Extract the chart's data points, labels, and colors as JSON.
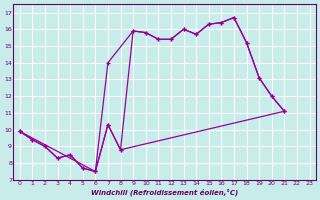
{
  "xlabel": "Windchill (Refroidissement éolien,°C)",
  "background_color": "#c8ecea",
  "line_color": "#990099",
  "grid_color": "#ffffff",
  "ylim": [
    7,
    17.5
  ],
  "xlim": [
    -0.5,
    23.5
  ],
  "yticks": [
    7,
    8,
    9,
    10,
    11,
    12,
    13,
    14,
    15,
    16,
    17
  ],
  "xticks": [
    0,
    1,
    2,
    3,
    4,
    5,
    6,
    7,
    8,
    9,
    10,
    11,
    12,
    13,
    14,
    15,
    16,
    17,
    18,
    19,
    20,
    21,
    22,
    23
  ],
  "line_jagged_x": [
    0,
    1,
    2,
    3,
    4,
    5,
    6,
    7,
    8,
    9,
    10,
    11,
    12,
    13,
    14,
    15,
    16,
    17,
    18,
    19,
    20,
    21
  ],
  "line_jagged_y": [
    9.9,
    9.4,
    9.0,
    8.3,
    8.5,
    7.7,
    7.5,
    10.3,
    8.8,
    15.9,
    15.8,
    15.4,
    15.4,
    16.0,
    15.7,
    16.3,
    16.4,
    16.7,
    15.2,
    13.1,
    12.0,
    11.1
  ],
  "line_upper_x": [
    0,
    6,
    7,
    9,
    10,
    11,
    12,
    13,
    14,
    15,
    16,
    17,
    18,
    19,
    20,
    21
  ],
  "line_upper_y": [
    9.9,
    7.5,
    14.0,
    15.9,
    15.8,
    15.4,
    15.4,
    16.0,
    15.7,
    16.3,
    16.4,
    16.7,
    15.2,
    13.1,
    12.0,
    11.1
  ],
  "line_lower_x": [
    0,
    1,
    2,
    3,
    4,
    5,
    6,
    7,
    8,
    21
  ],
  "line_lower_y": [
    9.9,
    9.4,
    9.0,
    8.3,
    8.5,
    7.7,
    7.5,
    10.3,
    8.8,
    11.1
  ]
}
